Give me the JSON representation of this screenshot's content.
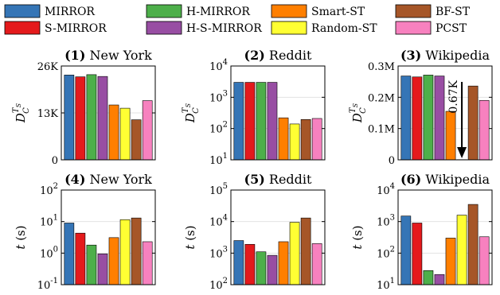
{
  "chart_data": [
    {
      "type": "bar",
      "panel": "(1)",
      "title": "New York",
      "ylabel_main": "D",
      "ylabel_sub": "C",
      "ylabel_sup": "T",
      "ylabel_supsub": "S",
      "scale": "linear",
      "ylim": [
        0,
        26000
      ],
      "yticks": [
        {
          "v": 0,
          "label": "0"
        },
        {
          "v": 13000,
          "label": "13K"
        },
        {
          "v": 26000,
          "label": "26K"
        }
      ],
      "values": [
        23500,
        23000,
        23600,
        23100,
        15200,
        14300,
        11100,
        16400
      ]
    },
    {
      "type": "bar",
      "panel": "(2)",
      "title": "Reddit",
      "ylabel_main": "D",
      "ylabel_sub": "C",
      "ylabel_sup": "T",
      "ylabel_supsub": "S",
      "scale": "log",
      "ylim": [
        10,
        10000
      ],
      "yticks": [
        {
          "v": 10,
          "base": "10",
          "exp": "1"
        },
        {
          "v": 100,
          "base": "10",
          "exp": "2"
        },
        {
          "v": 1000,
          "base": "10",
          "exp": "3"
        },
        {
          "v": 10000,
          "base": "10",
          "exp": "4"
        }
      ],
      "values": [
        3000,
        3000,
        3000,
        3000,
        220,
        140,
        195,
        210
      ]
    },
    {
      "type": "bar",
      "panel": "(3)",
      "title": "Wikipedia",
      "ylabel_main": "D",
      "ylabel_sub": "C",
      "ylabel_sup": "T",
      "ylabel_supsub": "S",
      "scale": "linear",
      "ylim": [
        0,
        300000
      ],
      "yticks": [
        {
          "v": 0,
          "label": "0"
        },
        {
          "v": 100000,
          "label": "0.1M"
        },
        {
          "v": 200000,
          "label": "0.2M"
        },
        {
          "v": 300000,
          "label": "0.3M"
        }
      ],
      "values": [
        268000,
        265000,
        271000,
        268000,
        155000,
        670,
        236000,
        190000
      ],
      "annotation": "0.67K"
    },
    {
      "type": "bar",
      "panel": "(4)",
      "title": "New York",
      "ylabel_main": "t",
      "ylabel_unit": "(s)",
      "scale": "log",
      "ylim": [
        0.1,
        100
      ],
      "yticks": [
        {
          "v": 0.1,
          "base": "10",
          "exp": "-1"
        },
        {
          "v": 1,
          "base": "10",
          "exp": "0"
        },
        {
          "v": 10,
          "base": "10",
          "exp": "1"
        },
        {
          "v": 100,
          "base": "10",
          "exp": "2"
        }
      ],
      "values": [
        9,
        4.3,
        1.8,
        0.95,
        3.1,
        11.5,
        13,
        2.3
      ]
    },
    {
      "type": "bar",
      "panel": "(5)",
      "title": "Reddit",
      "ylabel_main": "t",
      "ylabel_unit": "(s)",
      "scale": "log",
      "ylim": [
        100,
        100000
      ],
      "yticks": [
        {
          "v": 100,
          "base": "10",
          "exp": "2"
        },
        {
          "v": 1000,
          "base": "10",
          "exp": "3"
        },
        {
          "v": 10000,
          "base": "10",
          "exp": "4"
        },
        {
          "v": 100000,
          "base": "10",
          "exp": "5"
        }
      ],
      "values": [
        2500,
        1900,
        1100,
        850,
        2300,
        9500,
        13000,
        2000
      ]
    },
    {
      "type": "bar",
      "panel": "(6)",
      "title": "Wikipedia",
      "ylabel_main": "t",
      "ylabel_unit": "(s)",
      "scale": "log",
      "ylim": [
        10,
        10000
      ],
      "yticks": [
        {
          "v": 10,
          "base": "10",
          "exp": "1"
        },
        {
          "v": 100,
          "base": "10",
          "exp": "2"
        },
        {
          "v": 1000,
          "base": "10",
          "exp": "3"
        },
        {
          "v": 10000,
          "base": "10",
          "exp": "4"
        }
      ],
      "values": [
        1500,
        900,
        28,
        21,
        300,
        1600,
        3500,
        330
      ]
    }
  ],
  "legend": [
    {
      "name": "MIRROR",
      "color": "#3575b6"
    },
    {
      "name": "S-MIRROR",
      "color": "#e41a1c"
    },
    {
      "name": "H-MIRROR",
      "color": "#4daf4a"
    },
    {
      "name": "H-S-MIRROR",
      "color": "#984ea3"
    },
    {
      "name": "Smart-ST",
      "color": "#ff7f00"
    },
    {
      "name": "Random-ST",
      "color": "#ffff33"
    },
    {
      "name": "BF-ST",
      "color": "#a65628"
    },
    {
      "name": "PCST",
      "color": "#f781bf"
    }
  ],
  "legend_placement": "top",
  "grid": "horizontal"
}
